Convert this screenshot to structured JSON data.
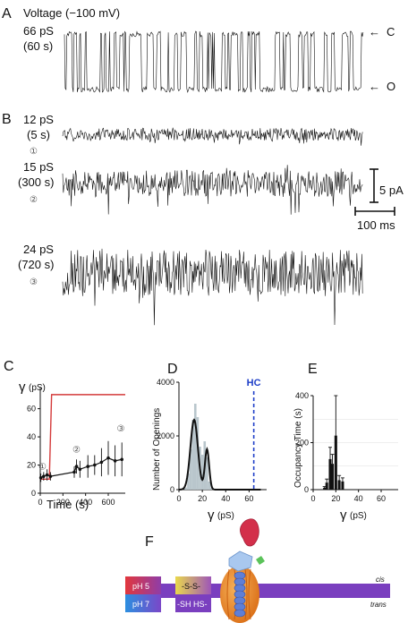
{
  "panels": {
    "A": {
      "letter": "A",
      "title": "Voltage (−100 mV)",
      "trace_label_1": "66 pS",
      "trace_label_2": "(60 s)",
      "state_closed": "C",
      "state_open": "O"
    },
    "B": {
      "letter": "B",
      "traces": [
        {
          "conductance": "12 pS",
          "time": "(5 s)",
          "marker": "①"
        },
        {
          "conductance": "15 pS",
          "time": "(300 s)",
          "marker": "②"
        },
        {
          "conductance": "24 pS",
          "time": "(720 s)",
          "marker": "③"
        }
      ],
      "scale_current": "5 pA",
      "scale_time": "100 ms"
    },
    "C": {
      "letter": "C",
      "ylabel_symbol": "γ",
      "ylabel_unit": "(pS)",
      "xlabel": "Time (s)",
      "markers": [
        "①",
        "②",
        "③"
      ]
    },
    "D": {
      "letter": "D",
      "ylabel": "Number of Openings",
      "xlabel_symbol": "γ",
      "xlabel_unit": "(pS)",
      "annotation": "HC"
    },
    "E": {
      "letter": "E",
      "ylabel": "Occupancy Time (s)",
      "xlabel_symbol": "γ",
      "xlabel_unit": "(pS)"
    },
    "F": {
      "letter": "F",
      "ph_top": "pH 5",
      "ph_bottom": "pH 7",
      "ss_label": "-S-S-",
      "sh_label": "-SH HS-",
      "cis": "cis",
      "trans": "trans"
    }
  },
  "chart_data": [
    {
      "panel": "C",
      "type": "line",
      "xlabel": "Time (s)",
      "ylabel": "γ (pS)",
      "xlim": [
        0,
        750
      ],
      "ylim": [
        0,
        75
      ],
      "xticks": [
        0,
        200,
        400,
        600
      ],
      "yticks": [
        0,
        20,
        40,
        60
      ],
      "series": [
        {
          "color": "#d43a3a",
          "x": [
            0,
            20,
            40,
            60,
            80,
            90,
            100,
            120,
            750
          ],
          "y": [
            10,
            10,
            10,
            10,
            10,
            40,
            70,
            70,
            70
          ]
        },
        {
          "color": "#111111",
          "x": [
            5,
            30,
            60,
            90,
            300,
            320,
            350,
            420,
            480,
            540,
            600,
            660,
            720
          ],
          "y": [
            11,
            12,
            13,
            12,
            15,
            19,
            17,
            19,
            20,
            22,
            25,
            23,
            24
          ],
          "err": [
            3,
            3,
            4,
            3,
            4,
            5,
            6,
            8,
            7,
            10,
            12,
            11,
            12
          ]
        }
      ]
    },
    {
      "panel": "D",
      "type": "bar",
      "xlabel": "γ (pS)",
      "ylabel": "Number of Openings",
      "xlim": [
        0,
        75
      ],
      "ylim": [
        0,
        4000
      ],
      "xticks": [
        0,
        20,
        40,
        60
      ],
      "yticks": [
        0,
        2000,
        4000
      ],
      "bins": [
        6,
        8,
        10,
        12,
        14,
        16,
        18,
        20,
        22,
        24,
        26,
        28
      ],
      "values": [
        80,
        600,
        1500,
        2600,
        3200,
        2700,
        1600,
        1300,
        1800,
        1200,
        300,
        80
      ],
      "fit_peaks": [
        {
          "mu": 13,
          "sigma": 3.2,
          "amp": 2600
        },
        {
          "mu": 24,
          "sigma": 1.8,
          "amp": 1500
        }
      ],
      "annotation": {
        "text": "HC",
        "x": 64
      }
    },
    {
      "panel": "E",
      "type": "bar",
      "xlabel": "γ (pS)",
      "ylabel": "Occupancy Time (s)",
      "xlim": [
        0,
        75
      ],
      "ylim": [
        0,
        400
      ],
      "xticks": [
        0,
        20,
        40,
        60
      ],
      "yticks": [
        0,
        200,
        400
      ],
      "bins": [
        10,
        12,
        15,
        17,
        20,
        23,
        26
      ],
      "values": [
        8,
        30,
        130,
        110,
        230,
        40,
        35
      ],
      "err": [
        5,
        15,
        50,
        40,
        170,
        20,
        15
      ]
    }
  ]
}
